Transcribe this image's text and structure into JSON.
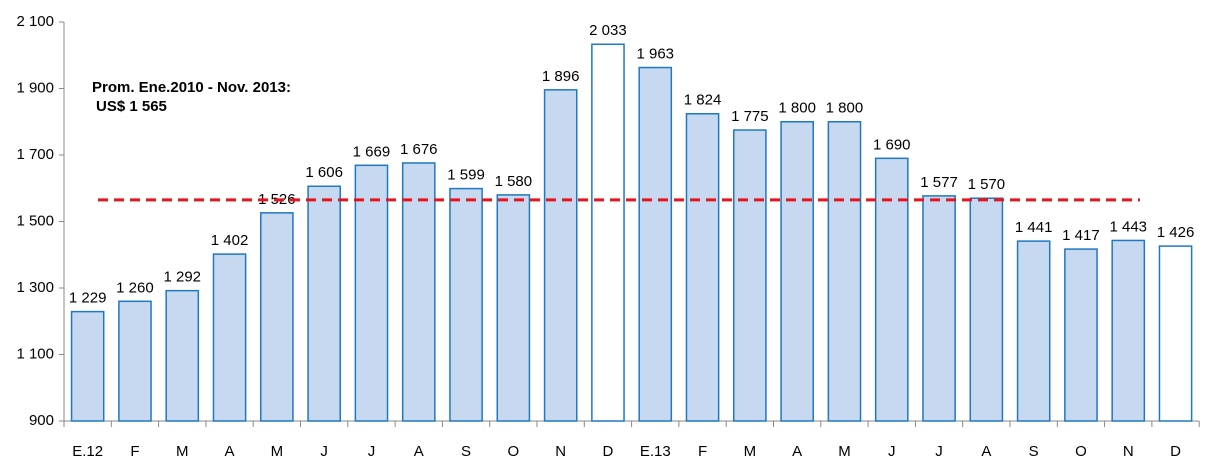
{
  "chart_data": {
    "type": "bar",
    "categories": [
      "E.12",
      "F",
      "M",
      "A",
      "M",
      "J",
      "J",
      "A",
      "S",
      "O",
      "N",
      "D",
      "E.13",
      "F",
      "M",
      "A",
      "M",
      "J",
      "J",
      "A",
      "S",
      "O",
      "N",
      "D"
    ],
    "values": [
      1229,
      1260,
      1292,
      1402,
      1526,
      1606,
      1669,
      1676,
      1599,
      1580,
      1896,
      2033,
      1963,
      1824,
      1775,
      1800,
      1800,
      1690,
      1577,
      1570,
      1441,
      1417,
      1443,
      1426
    ],
    "value_labels": [
      "1 229",
      "1 260",
      "1 292",
      "1 402",
      "1 526",
      "1 606",
      "1 669",
      "1 676",
      "1 599",
      "1 580",
      "1 896",
      "2 033",
      "1 963",
      "1 824",
      "1 775",
      "1 800",
      "1 800",
      "1 690",
      "1 577",
      "1 570",
      "1 441",
      "1 417",
      "1 443",
      "1 426"
    ],
    "colors": [
      "#c6d9f1",
      "#c6d9f1",
      "#c6d9f1",
      "#c6d9f1",
      "#c6d9f1",
      "#c6d9f1",
      "#c6d9f1",
      "#c6d9f1",
      "#c6d9f1",
      "#c6d9f1",
      "#c6d9f1",
      "#ffffff",
      "#c6d9f1",
      "#c6d9f1",
      "#c6d9f1",
      "#c6d9f1",
      "#c6d9f1",
      "#c6d9f1",
      "#c6d9f1",
      "#c6d9f1",
      "#c6d9f1",
      "#c6d9f1",
      "#c6d9f1",
      "#ffffff"
    ],
    "border_color": "#1f78c1",
    "ylim": [
      900,
      2100
    ],
    "yticks": [
      900,
      {
        "value": 1100,
        "label": "1 100"
      },
      {
        "value": 1300,
        "label": "1 300"
      },
      {
        "value": 1500,
        "label": "1 500"
      },
      {
        "value": 1700,
        "label": "1 700"
      },
      {
        "value": 1900,
        "label": "1 900"
      },
      {
        "value": 2100,
        "label": "2 100"
      }
    ],
    "grid": false,
    "reference_line": 1565,
    "reference_color": "#e8141c",
    "annotation": [
      "Prom. Ene.2010 - Nov. 2013:",
      "US$ 1 565"
    ]
  }
}
